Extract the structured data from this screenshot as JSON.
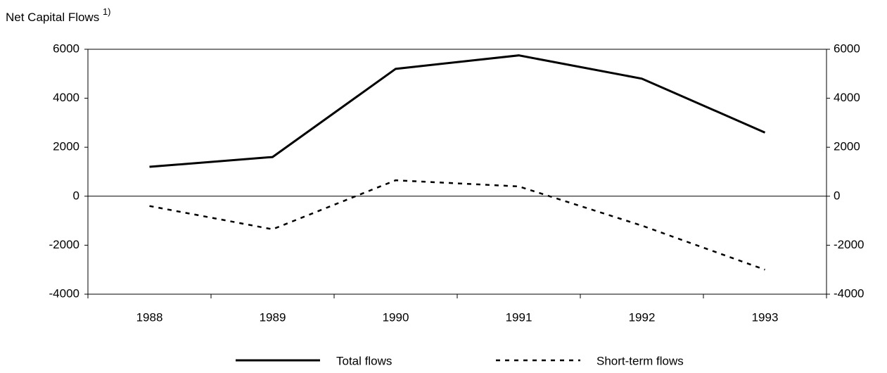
{
  "chart_data": {
    "type": "line",
    "title": "Net Capital Flows",
    "title_note": "1)",
    "categories": [
      "1988",
      "1989",
      "1990",
      "1991",
      "1992",
      "1993"
    ],
    "series": [
      {
        "name": "Total flows",
        "color": "#000000",
        "dash": "solid",
        "values": [
          1200,
          1600,
          5200,
          5750,
          4800,
          2600
        ]
      },
      {
        "name": "Short-term flows",
        "color": "#000000",
        "dash": "dashed",
        "values": [
          -400,
          -1350,
          650,
          400,
          -1200,
          -3000
        ]
      }
    ],
    "ylim": [
      -4000,
      6000
    ],
    "yticks": [
      -4000,
      -2000,
      0,
      2000,
      4000,
      6000
    ],
    "y2lim": [
      -4000,
      6000
    ],
    "y2ticks": [
      -4000,
      -2000,
      0,
      2000,
      4000,
      6000
    ],
    "legend": "bottom",
    "grid": false
  }
}
